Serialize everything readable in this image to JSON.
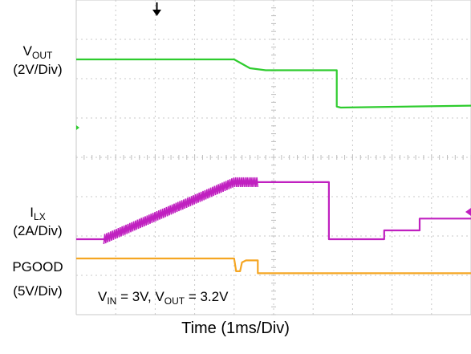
{
  "chart_data": {
    "type": "line",
    "title": "",
    "xlabel": "Time (1ms/Div)",
    "annotation": {
      "text_parts": [
        "V",
        "IN",
        " = 3V, V",
        "OUT",
        " = 3.2V"
      ]
    },
    "x_range_ms": [
      0,
      10
    ],
    "grid": true,
    "series": [
      {
        "name": "VOUT",
        "name_main": "V",
        "name_sub": "OUT",
        "scale": "(2V/Div)",
        "color": "#2ecc2e",
        "x_ms": [
          0,
          4.0,
          4.4,
          4.8,
          6.6,
          6.6,
          6.7,
          10
        ],
        "y_div": [
          0,
          0,
          -0.45,
          -0.55,
          -0.55,
          -2.4,
          -2.45,
          -2.35
        ]
      },
      {
        "name": "ILX",
        "name_main": "I",
        "name_sub": "LX",
        "scale": "(2A/Div)",
        "color": "#c020c0",
        "x_ms": [
          0,
          0.7,
          4.0,
          4.6,
          6.4,
          6.4,
          7.8,
          7.8,
          8.7,
          8.7,
          9.6,
          10
        ],
        "y_div": [
          0,
          0,
          2.9,
          2.9,
          2.9,
          0,
          0,
          0.45,
          0.45,
          1.05,
          1.05,
          1.05
        ]
      },
      {
        "name": "PGOOD",
        "name_main": "PGOOD",
        "name_sub": "",
        "scale": "(5V/Div)",
        "color": "#f5a623",
        "x_ms": [
          0,
          4.0,
          4.05,
          4.15,
          4.2,
          4.3,
          4.6,
          4.6,
          10
        ],
        "y_div": [
          0,
          0,
          -0.65,
          -0.65,
          -0.2,
          -0.1,
          -0.1,
          -0.75,
          -0.75
        ]
      }
    ]
  }
}
